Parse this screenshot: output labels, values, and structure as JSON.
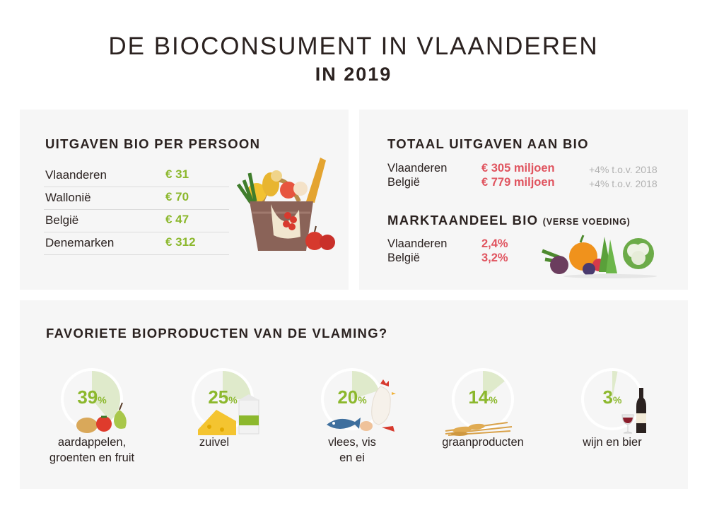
{
  "title": {
    "line1": "DE BIOCONSUMENT IN VLAANDEREN",
    "line2": "IN 2019"
  },
  "per_person": {
    "heading": "UITGAVEN BIO PER PERSOON",
    "rows": [
      {
        "label": "Vlaanderen",
        "value": "€ 31"
      },
      {
        "label": "Wallonië",
        "value": "€ 70"
      },
      {
        "label": "België",
        "value": "€ 47"
      },
      {
        "label": "Denemarken",
        "value": "€ 312"
      }
    ]
  },
  "totaal": {
    "heading": "TOTAAL UITGAVEN AAN BIO",
    "rows": [
      {
        "label": "Vlaanderen",
        "value": "€ 305 miljoen",
        "note": "+4% t.o.v. 2018"
      },
      {
        "label": "België",
        "value": "€ 779 miljoen",
        "note": "+4% t.o.v. 2018"
      }
    ]
  },
  "marktaandeel": {
    "heading": "MARKTAANDEEL BIO",
    "heading_small": "(VERSE VOEDING)",
    "rows": [
      {
        "label": "Vlaanderen",
        "value": "2,4%"
      },
      {
        "label": "België",
        "value": "3,2%"
      }
    ]
  },
  "favorites": {
    "heading": "FAVORIETE BIOPRODUCTEN VAN DE VLAMING?",
    "items": [
      {
        "value": "39",
        "unit": "%",
        "share": 39,
        "label_line1": "aardappelen,",
        "label_line2": "groenten en fruit"
      },
      {
        "value": "25",
        "unit": "%",
        "share": 25,
        "label_line1": "zuivel",
        "label_line2": ""
      },
      {
        "value": "20",
        "unit": "%",
        "share": 20,
        "label_line1": "vlees, vis",
        "label_line2": "en ei"
      },
      {
        "value": "14",
        "unit": "%",
        "share": 14,
        "label_line1": "graanproducten",
        "label_line2": ""
      },
      {
        "value": "3",
        "unit": "%",
        "share": 3,
        "label_line1": "wijn en bier",
        "label_line2": ""
      }
    ]
  },
  "colors": {
    "green": "#8cb82d",
    "red": "#e0545f",
    "pie_fill": "#dfeacb",
    "ring": "#ffffff",
    "panel": "#f6f6f6"
  }
}
